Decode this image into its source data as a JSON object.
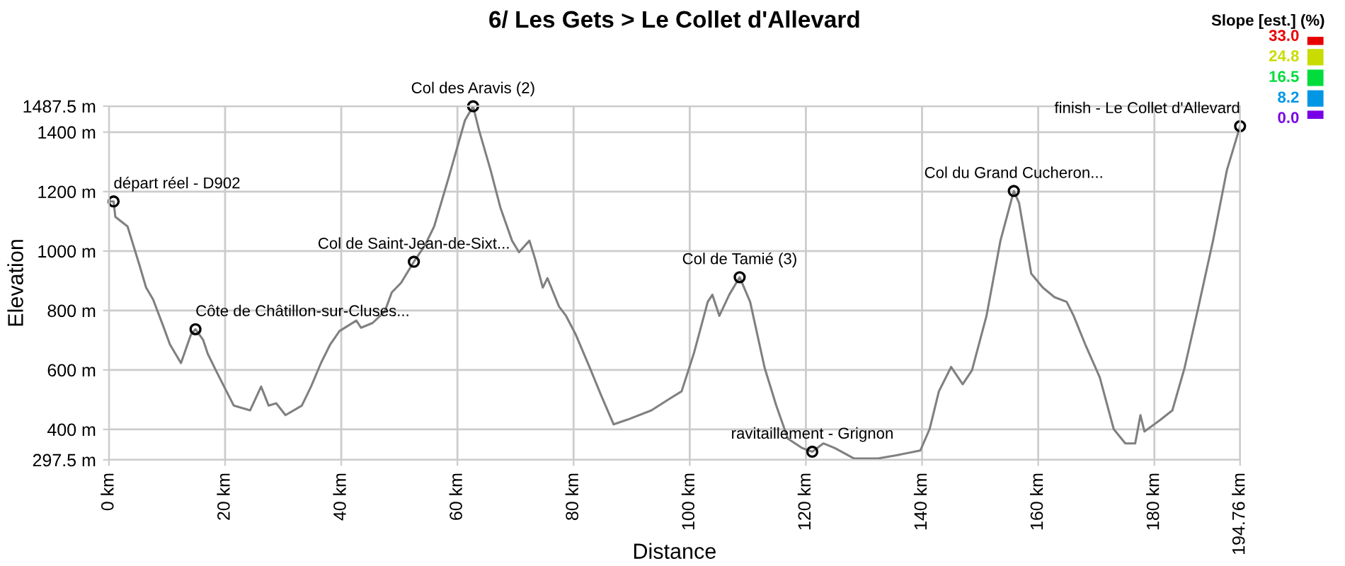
{
  "chart_data": {
    "type": "line",
    "title": "6/ Les Gets > Le Collet d'Allevard",
    "xlabel": "Distance",
    "ylabel": "Elevation",
    "x": [
      0,
      0.8,
      1.1,
      3.2,
      5.2,
      6.4,
      7.6,
      9.3,
      10.5,
      12.4,
      14.1,
      14.9,
      16.2,
      17.0,
      18.6,
      21.5,
      24.3,
      26.2,
      27.5,
      28.8,
      30.4,
      33.2,
      34.8,
      36.5,
      38.1,
      39.7,
      42.6,
      43.4,
      45.4,
      47.5,
      48.7,
      50.3,
      52.5,
      54.4,
      56.0,
      58.4,
      61.3,
      62.7,
      63.7,
      65.7,
      67.4,
      69.4,
      70.6,
      72.4,
      73.4,
      74.7,
      75.5,
      77.5,
      78.7,
      80.4,
      82.8,
      84.8,
      86.9,
      89.3,
      93.4,
      96.6,
      98.6,
      100.7,
      103.1,
      103.9,
      105.1,
      106.8,
      108.6,
      110.4,
      112.9,
      114.9,
      116.9,
      119.4,
      121.1,
      123.0,
      125.0,
      128.3,
      132.4,
      135.6,
      139.7,
      141.3,
      142.9,
      145.0,
      147.0,
      148.6,
      151.1,
      153.5,
      155.8,
      156.7,
      158.8,
      160.8,
      162.8,
      164.9,
      166.1,
      168.1,
      170.6,
      173.0,
      175.0,
      176.7,
      177.6,
      178.3,
      181.1,
      183.1,
      185.2,
      187.6,
      190.1,
      192.5,
      194.76
    ],
    "series": [
      {
        "color": "#808080",
        "values": [
          1167,
          1167,
          1115,
          1083,
          956,
          877,
          837,
          750,
          686,
          623,
          718,
          737,
          702,
          655,
          591,
          480,
          464,
          544,
          480,
          488,
          448,
          480,
          544,
          623,
          686,
          731,
          766,
          742,
          758,
          797,
          861,
          893,
          964,
          1019,
          1083,
          1241,
          1440,
          1487,
          1408,
          1273,
          1146,
          1035,
          996,
          1035,
          972,
          877,
          909,
          813,
          782,
          718,
          607,
          512,
          417,
          433,
          464,
          504,
          528,
          655,
          829,
          853,
          782,
          853,
          912,
          829,
          607,
          480,
          369,
          337,
          325,
          353,
          337,
          302,
          302,
          313,
          329,
          401,
          528,
          610,
          552,
          599,
          782,
          1035,
          1202,
          1162,
          924,
          877,
          845,
          829,
          782,
          686,
          575,
          401,
          353,
          353,
          448,
          393,
          433,
          464,
          607,
          813,
          1035,
          1273,
          1420
        ]
      }
    ],
    "xlim": [
      0,
      194.76
    ],
    "ylim": [
      297.5,
      1487.5
    ],
    "xticks": [
      {
        "value": 0,
        "label": "0 km"
      },
      {
        "value": 20,
        "label": "20 km"
      },
      {
        "value": 40,
        "label": "40 km"
      },
      {
        "value": 60,
        "label": "60 km"
      },
      {
        "value": 80,
        "label": "80 km"
      },
      {
        "value": 100,
        "label": "100 km"
      },
      {
        "value": 120,
        "label": "120 km"
      },
      {
        "value": 140,
        "label": "140 km"
      },
      {
        "value": 160,
        "label": "160 km"
      },
      {
        "value": 180,
        "label": "180 km"
      },
      {
        "value": 194.76,
        "label": "194.76 km"
      }
    ],
    "yticks": [
      {
        "value": 297.5,
        "label": "297.5 m"
      },
      {
        "value": 400,
        "label": "400 m"
      },
      {
        "value": 600,
        "label": "600 m"
      },
      {
        "value": 800,
        "label": "800 m"
      },
      {
        "value": 1000,
        "label": "1000 m"
      },
      {
        "value": 1200,
        "label": "1200 m"
      },
      {
        "value": 1400,
        "label": "1400 m"
      },
      {
        "value": 1487.5,
        "label": "1487.5 m"
      }
    ],
    "grid": true,
    "marker": "none",
    "line_style": "solid",
    "annotations": [
      {
        "text": "départ réel - D902",
        "x": 0.8,
        "y": 1167
      },
      {
        "text": "Côte de Châtillon-sur-Cluses...",
        "x": 14.9,
        "y": 737
      },
      {
        "text": "Col de Saint-Jean-de-Sixt...",
        "x": 52.5,
        "y": 964
      },
      {
        "text": "Col des Aravis (2)",
        "x": 62.7,
        "y": 1487
      },
      {
        "text": "Col de Tamié (3)",
        "x": 108.6,
        "y": 912
      },
      {
        "text": "ravitaillement - Grignon",
        "x": 121.1,
        "y": 325
      },
      {
        "text": "Col du Grand Cucheron...",
        "x": 155.8,
        "y": 1202
      },
      {
        "text": "finish - Le Collet d'Allevard",
        "x": 194.76,
        "y": 1420
      }
    ],
    "clabel": "Slope [est.] (%)",
    "clim": [
      0,
      33
    ],
    "cticks": [
      {
        "value": 33,
        "label": "33.0"
      },
      {
        "value": 24.8,
        "label": "24.8"
      },
      {
        "value": 16.5,
        "label": "16.5"
      },
      {
        "value": 8.2,
        "label": "8.2"
      },
      {
        "value": 0,
        "label": "0.0"
      }
    ],
    "colors": [
      "#e80000",
      "#c8dc00",
      "#00dc3c",
      "#0096e6",
      "#7800e6"
    ]
  }
}
